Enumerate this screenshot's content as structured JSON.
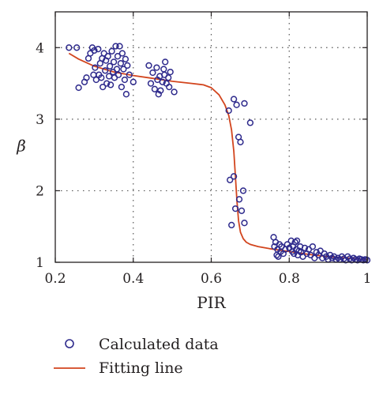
{
  "colors": {
    "marker": "#2e2a8c",
    "fit_line": "#d2451e",
    "axis": "#231f20",
    "grid": "#555555"
  },
  "chart_data": {
    "type": "scatter",
    "xlabel": "PIR",
    "ylabel": "β",
    "xlim": [
      0.2,
      1.0
    ],
    "ylim": [
      1.0,
      4.5
    ],
    "x_ticks": [
      0.2,
      0.4,
      0.6,
      0.8,
      1.0
    ],
    "x_tick_labels": [
      "0.2",
      "0.4",
      "0.6",
      "0.8",
      "1"
    ],
    "y_ticks": [
      1,
      2,
      3,
      4
    ],
    "y_tick_labels": [
      "1",
      "2",
      "3",
      "4"
    ],
    "grid": true,
    "legend_position": "bottom",
    "series": [
      {
        "name": "Calculated data",
        "kind": "scatter",
        "marker": "open-circle",
        "points": [
          [
            0.235,
            4.0
          ],
          [
            0.255,
            4.0
          ],
          [
            0.26,
            3.44
          ],
          [
            0.275,
            3.52
          ],
          [
            0.28,
            3.58
          ],
          [
            0.285,
            3.85
          ],
          [
            0.29,
            3.92
          ],
          [
            0.295,
            4.0
          ],
          [
            0.298,
            3.62
          ],
          [
            0.3,
            3.96
          ],
          [
            0.302,
            3.72
          ],
          [
            0.305,
            3.55
          ],
          [
            0.31,
            3.98
          ],
          [
            0.312,
            3.62
          ],
          [
            0.315,
            3.78
          ],
          [
            0.318,
            3.58
          ],
          [
            0.32,
            3.85
          ],
          [
            0.322,
            3.45
          ],
          [
            0.325,
            3.92
          ],
          [
            0.328,
            3.68
          ],
          [
            0.33,
            3.82
          ],
          [
            0.332,
            3.5
          ],
          [
            0.335,
            3.88
          ],
          [
            0.338,
            3.6
          ],
          [
            0.34,
            3.74
          ],
          [
            0.342,
            3.48
          ],
          [
            0.345,
            3.95
          ],
          [
            0.348,
            3.66
          ],
          [
            0.35,
            3.8
          ],
          [
            0.352,
            3.58
          ],
          [
            0.355,
            4.02
          ],
          [
            0.358,
            3.7
          ],
          [
            0.36,
            3.88
          ],
          [
            0.362,
            3.62
          ],
          [
            0.365,
            4.02
          ],
          [
            0.368,
            3.78
          ],
          [
            0.37,
            3.45
          ],
          [
            0.372,
            3.92
          ],
          [
            0.375,
            3.7
          ],
          [
            0.378,
            3.55
          ],
          [
            0.38,
            3.84
          ],
          [
            0.382,
            3.35
          ],
          [
            0.385,
            3.75
          ],
          [
            0.39,
            3.62
          ],
          [
            0.4,
            3.52
          ],
          [
            0.44,
            3.75
          ],
          [
            0.445,
            3.5
          ],
          [
            0.45,
            3.65
          ],
          [
            0.455,
            3.42
          ],
          [
            0.46,
            3.72
          ],
          [
            0.462,
            3.55
          ],
          [
            0.465,
            3.35
          ],
          [
            0.468,
            3.6
          ],
          [
            0.47,
            3.4
          ],
          [
            0.475,
            3.52
          ],
          [
            0.478,
            3.7
          ],
          [
            0.48,
            3.62
          ],
          [
            0.482,
            3.8
          ],
          [
            0.485,
            3.5
          ],
          [
            0.49,
            3.58
          ],
          [
            0.492,
            3.45
          ],
          [
            0.495,
            3.66
          ],
          [
            0.505,
            3.38
          ],
          [
            0.645,
            3.12
          ],
          [
            0.658,
            3.28
          ],
          [
            0.665,
            3.2
          ],
          [
            0.67,
            2.75
          ],
          [
            0.675,
            2.68
          ],
          [
            0.685,
            3.22
          ],
          [
            0.7,
            2.95
          ],
          [
            0.648,
            2.15
          ],
          [
            0.652,
            1.52
          ],
          [
            0.658,
            2.2
          ],
          [
            0.662,
            1.75
          ],
          [
            0.672,
            1.88
          ],
          [
            0.678,
            1.72
          ],
          [
            0.682,
            2.0
          ],
          [
            0.685,
            1.55
          ],
          [
            0.76,
            1.35
          ],
          [
            0.762,
            1.22
          ],
          [
            0.765,
            1.28
          ],
          [
            0.768,
            1.1
          ],
          [
            0.77,
            1.18
          ],
          [
            0.772,
            1.08
          ],
          [
            0.775,
            1.25
          ],
          [
            0.778,
            1.15
          ],
          [
            0.78,
            1.22
          ],
          [
            0.785,
            1.12
          ],
          [
            0.79,
            1.18
          ],
          [
            0.795,
            1.25
          ],
          [
            0.8,
            1.2
          ],
          [
            0.805,
            1.3
          ],
          [
            0.808,
            1.15
          ],
          [
            0.81,
            1.22
          ],
          [
            0.812,
            1.12
          ],
          [
            0.815,
            1.28
          ],
          [
            0.818,
            1.18
          ],
          [
            0.82,
            1.3
          ],
          [
            0.822,
            1.1
          ],
          [
            0.825,
            1.16
          ],
          [
            0.828,
            1.22
          ],
          [
            0.83,
            1.14
          ],
          [
            0.835,
            1.08
          ],
          [
            0.84,
            1.2
          ],
          [
            0.845,
            1.12
          ],
          [
            0.85,
            1.18
          ],
          [
            0.855,
            1.1
          ],
          [
            0.86,
            1.22
          ],
          [
            0.865,
            1.06
          ],
          [
            0.87,
            1.14
          ],
          [
            0.875,
            1.1
          ],
          [
            0.88,
            1.16
          ],
          [
            0.885,
            1.06
          ],
          [
            0.89,
            1.12
          ],
          [
            0.895,
            1.08
          ],
          [
            0.9,
            1.04
          ],
          [
            0.905,
            1.1
          ],
          [
            0.91,
            1.06
          ],
          [
            0.915,
            1.08
          ],
          [
            0.92,
            1.04
          ],
          [
            0.925,
            1.06
          ],
          [
            0.93,
            1.04
          ],
          [
            0.935,
            1.08
          ],
          [
            0.94,
            1.05
          ],
          [
            0.945,
            1.03
          ],
          [
            0.95,
            1.08
          ],
          [
            0.955,
            1.05
          ],
          [
            0.96,
            1.03
          ],
          [
            0.965,
            1.06
          ],
          [
            0.97,
            1.04
          ],
          [
            0.975,
            1.03
          ],
          [
            0.98,
            1.05
          ],
          [
            0.985,
            1.04
          ],
          [
            0.99,
            1.03
          ],
          [
            0.995,
            1.04
          ],
          [
            1.0,
            1.03
          ]
        ]
      },
      {
        "name": "Fitting line",
        "kind": "line",
        "points": [
          [
            0.235,
            3.92
          ],
          [
            0.26,
            3.84
          ],
          [
            0.3,
            3.74
          ],
          [
            0.35,
            3.66
          ],
          [
            0.4,
            3.61
          ],
          [
            0.45,
            3.57
          ],
          [
            0.5,
            3.53
          ],
          [
            0.55,
            3.5
          ],
          [
            0.58,
            3.48
          ],
          [
            0.6,
            3.44
          ],
          [
            0.62,
            3.34
          ],
          [
            0.635,
            3.2
          ],
          [
            0.645,
            3.05
          ],
          [
            0.652,
            2.85
          ],
          [
            0.658,
            2.55
          ],
          [
            0.662,
            2.2
          ],
          [
            0.666,
            1.85
          ],
          [
            0.67,
            1.58
          ],
          [
            0.675,
            1.42
          ],
          [
            0.682,
            1.33
          ],
          [
            0.69,
            1.28
          ],
          [
            0.7,
            1.25
          ],
          [
            0.72,
            1.22
          ],
          [
            0.75,
            1.19
          ],
          [
            0.8,
            1.15
          ],
          [
            0.85,
            1.11
          ],
          [
            0.9,
            1.08
          ],
          [
            0.95,
            1.06
          ],
          [
            1.0,
            1.04
          ]
        ]
      }
    ]
  }
}
